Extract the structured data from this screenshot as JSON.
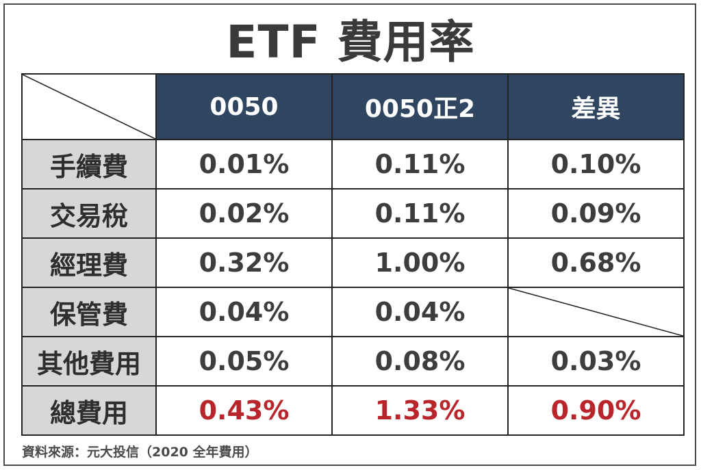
{
  "title": "ETF 費用率",
  "columns": [
    "0050",
    "0050正2",
    "差異"
  ],
  "rows": [
    {
      "label": "手續費",
      "values": [
        "0.01%",
        "0.11%",
        "0.10%"
      ]
    },
    {
      "label": "交易稅",
      "values": [
        "0.02%",
        "0.11%",
        "0.09%"
      ]
    },
    {
      "label": "經理費",
      "values": [
        "0.32%",
        "1.00%",
        "0.68%"
      ]
    },
    {
      "label": "保管費",
      "values": [
        "0.04%",
        "0.04%",
        ""
      ]
    },
    {
      "label": "其他費用",
      "values": [
        "0.05%",
        "0.08%",
        "0.03%"
      ]
    },
    {
      "label": "總費用",
      "values": [
        "0.43%",
        "1.33%",
        "0.90%"
      ]
    }
  ],
  "colors": {
    "header_bg": "#2f4560",
    "total_text": "#b8262b",
    "row_label_bg": "#d7d7d7"
  },
  "source": "資料來源：元大投信（2020 全年費用）"
}
